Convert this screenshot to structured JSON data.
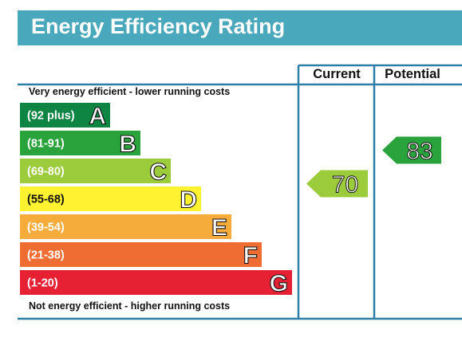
{
  "header": {
    "title": "Energy Efficiency Rating"
  },
  "chart_data": {
    "type": "bar",
    "title": "Energy Efficiency Rating",
    "top_caption": "Very energy efficient - lower running costs",
    "bottom_caption": "Not energy efficient - higher running costs",
    "columns": {
      "current": "Current",
      "potential": "Potential"
    },
    "bands": [
      {
        "letter": "A",
        "range": "(92 plus)",
        "min": 92,
        "max": 100,
        "color": "#0e8543"
      },
      {
        "letter": "B",
        "range": "(81-91)",
        "min": 81,
        "max": 91,
        "color": "#2ba33c"
      },
      {
        "letter": "C",
        "range": "(69-80)",
        "min": 69,
        "max": 80,
        "color": "#9ccb3b"
      },
      {
        "letter": "D",
        "range": "(55-68)",
        "min": 55,
        "max": 68,
        "color": "#fef231"
      },
      {
        "letter": "E",
        "range": "(39-54)",
        "min": 39,
        "max": 54,
        "color": "#f6ac3b"
      },
      {
        "letter": "F",
        "range": "(21-38)",
        "min": 21,
        "max": 38,
        "color": "#ef6d32"
      },
      {
        "letter": "G",
        "range": "(1-20)",
        "min": 1,
        "max": 20,
        "color": "#e52133"
      }
    ],
    "current": {
      "value": 70,
      "label": "70",
      "band": "C"
    },
    "potential": {
      "value": 83,
      "label": "83",
      "band": "B"
    }
  }
}
